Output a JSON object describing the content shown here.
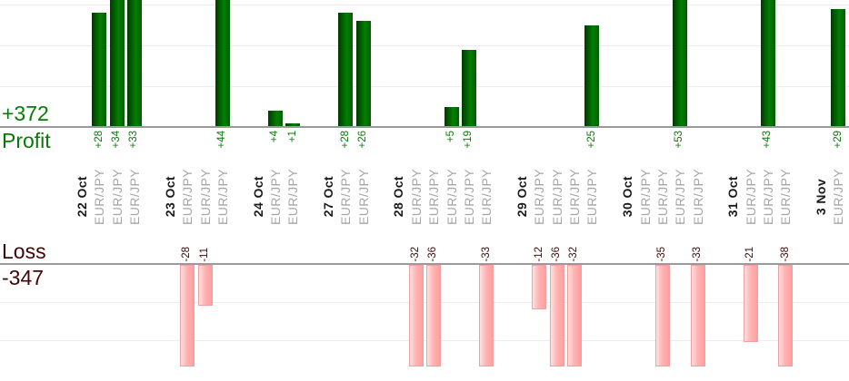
{
  "chart_data": {
    "type": "bar",
    "instrument": "EUR/JPY",
    "profit_section": {
      "total_label": "+372",
      "total": 372,
      "axis_title": "Profit",
      "bar_color": "#027f02",
      "text_color": "#0c7a0c"
    },
    "loss_section": {
      "total_label": "-347",
      "total": -347,
      "axis_title": "Loss",
      "bar_color": "#ffb4b4",
      "text_color": "#400a0a"
    },
    "groups": [
      {
        "date": "22 Oct",
        "trades": [
          {
            "instrument": "EUR/JPY",
            "value": 28,
            "label": "+28"
          },
          {
            "instrument": "EUR/JPY",
            "value": 34,
            "label": "+34"
          },
          {
            "instrument": "EUR/JPY",
            "value": 33,
            "label": "+33"
          }
        ]
      },
      {
        "date": "23 Oct",
        "trades": [
          {
            "instrument": "EUR/JPY",
            "value": -28,
            "label": "-28"
          },
          {
            "instrument": "EUR/JPY",
            "value": -11,
            "label": "-11"
          },
          {
            "instrument": "EUR/JPY",
            "value": 44,
            "label": "+44"
          }
        ]
      },
      {
        "date": "24 Oct",
        "trades": [
          {
            "instrument": "EUR/JPY",
            "value": 4,
            "label": "+4"
          },
          {
            "instrument": "EUR/JPY",
            "value": 1,
            "label": "+1"
          }
        ]
      },
      {
        "date": "27 Oct",
        "trades": [
          {
            "instrument": "EUR/JPY",
            "value": 28,
            "label": "+28"
          },
          {
            "instrument": "EUR/JPY",
            "value": 26,
            "label": "+26"
          }
        ]
      },
      {
        "date": "28 Oct",
        "trades": [
          {
            "instrument": "EUR/JPY",
            "value": -32,
            "label": "-32"
          },
          {
            "instrument": "EUR/JPY",
            "value": -36,
            "label": "-36"
          },
          {
            "instrument": "EUR/JPY",
            "value": 5,
            "label": "+5"
          },
          {
            "instrument": "EUR/JPY",
            "value": 19,
            "label": "+19"
          },
          {
            "instrument": "EUR/JPY",
            "value": -33,
            "label": "-33"
          }
        ]
      },
      {
        "date": "29 Oct",
        "trades": [
          {
            "instrument": "EUR/JPY",
            "value": -12,
            "label": "-12"
          },
          {
            "instrument": "EUR/JPY",
            "value": -36,
            "label": "-36"
          },
          {
            "instrument": "EUR/JPY",
            "value": -32,
            "label": "-32"
          },
          {
            "instrument": "EUR/JPY",
            "value": 25,
            "label": "+25"
          }
        ]
      },
      {
        "date": "30 Oct",
        "trades": [
          {
            "instrument": "EUR/JPY",
            "value": 0,
            "label": ""
          },
          {
            "instrument": "EUR/JPY",
            "value": -35,
            "label": "-35"
          },
          {
            "instrument": "EUR/JPY",
            "value": 53,
            "label": "+53"
          },
          {
            "instrument": "EUR/JPY",
            "value": -33,
            "label": "-33"
          }
        ]
      },
      {
        "date": "31 Oct",
        "trades": [
          {
            "instrument": "EUR/JPY",
            "value": -21,
            "label": "-21"
          },
          {
            "instrument": "EUR/JPY",
            "value": 43,
            "label": "+43"
          },
          {
            "instrument": "EUR/JPY",
            "value": -38,
            "label": "-38"
          }
        ]
      },
      {
        "date": "3 Nov",
        "trades": [
          {
            "instrument": "EUR/JPY",
            "value": 29,
            "label": "+29"
          }
        ]
      }
    ],
    "layout_hints": {
      "profit_axis_visible_max": 31,
      "loss_axis_visible_max": 28,
      "profit_gridline_values": [
        10,
        20,
        30
      ],
      "loss_gridline_values": [
        10,
        20
      ],
      "grid": true,
      "legend": false,
      "bars_clipped_when_exceeding_range": true
    }
  }
}
